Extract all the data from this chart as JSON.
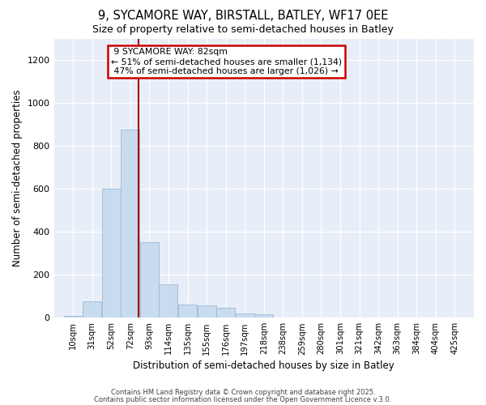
{
  "title_line1": "9, SYCAMORE WAY, BIRSTALL, BATLEY, WF17 0EE",
  "title_line2": "Size of property relative to semi-detached houses in Batley",
  "xlabel": "Distribution of semi-detached houses by size in Batley",
  "ylabel": "Number of semi-detached properties",
  "bar_labels": [
    "10sqm",
    "31sqm",
    "52sqm",
    "72sqm",
    "93sqm",
    "114sqm",
    "135sqm",
    "155sqm",
    "176sqm",
    "197sqm",
    "218sqm",
    "238sqm",
    "259sqm",
    "280sqm",
    "301sqm",
    "321sqm",
    "342sqm",
    "363sqm",
    "384sqm",
    "404sqm",
    "425sqm"
  ],
  "bar_values": [
    8,
    75,
    600,
    875,
    350,
    155,
    62,
    58,
    45,
    20,
    15,
    0,
    0,
    0,
    0,
    0,
    0,
    0,
    0,
    0,
    0
  ],
  "bar_color": "#c9dcef",
  "bar_edgecolor": "#9ab8d8",
  "property_value": 82,
  "property_label": "9 SYCAMORE WAY: 82sqm",
  "pct_smaller": 51,
  "pct_larger": 47,
  "n_smaller": 1134,
  "n_larger": 1026,
  "vline_color": "#aa0000",
  "annotation_box_edgecolor": "#cc0000",
  "ylim": [
    0,
    1300
  ],
  "yticks": [
    0,
    200,
    400,
    600,
    800,
    1000,
    1200
  ],
  "bg_color": "#e8eef8",
  "grid_color": "#ffffff",
  "footer_line1": "Contains HM Land Registry data © Crown copyright and database right 2025.",
  "footer_line2": "Contains public sector information licensed under the Open Government Licence v.3.0.",
  "bin_width": 21
}
